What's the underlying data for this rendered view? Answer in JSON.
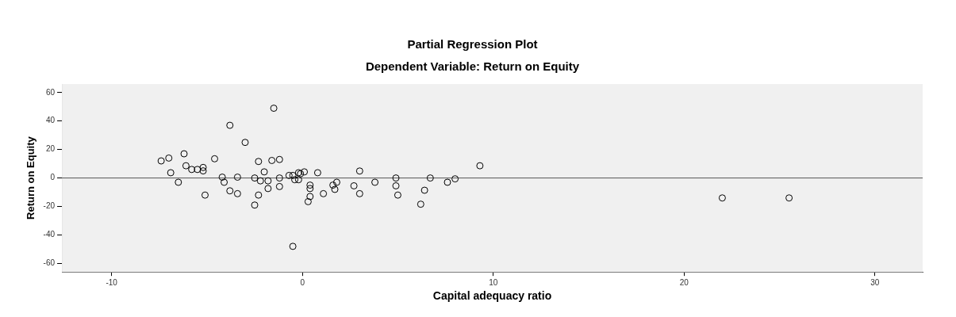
{
  "chart_data": {
    "type": "scatter",
    "title": "Partial Regression Plot",
    "subtitle": "Dependent Variable: Return on Equity",
    "xlabel": "Capital adequacy ratio",
    "ylabel": "Return on Equity",
    "x": [
      -1.5,
      -3.8,
      -3.0,
      -7.4,
      -7.0,
      -6.2,
      -4.6,
      -6.1,
      -5.8,
      -5.5,
      -5.2,
      -5.2,
      -6.9,
      -6.5,
      -5.1,
      -4.2,
      -4.1,
      -3.4,
      -3.8,
      -3.4,
      -2.3,
      -2.0,
      -1.6,
      -1.2,
      -2.5,
      -2.2,
      -1.8,
      -1.8,
      -1.2,
      -2.3,
      -2.5,
      -1.2,
      -0.7,
      -0.4,
      -0.1,
      -0.5,
      -0.5,
      -0.2,
      0.1,
      0.8,
      -0.2,
      0.4,
      0.4,
      0.4,
      0.3,
      1.1,
      1.6,
      1.8,
      1.7,
      2.7,
      3.0,
      3.0,
      3.8,
      4.9,
      4.9,
      5.0,
      6.4,
      6.2,
      6.7,
      7.6,
      8.0,
      9.3,
      22.0,
      25.5
    ],
    "series": [
      {
        "color": "#000000",
        "values": [
          49,
          37,
          25,
          12,
          14,
          17,
          13.5,
          8.6,
          6,
          6,
          7.4,
          5,
          3.7,
          -3,
          -12,
          0.6,
          -3,
          0.6,
          -9,
          -11,
          11.6,
          4.3,
          12.3,
          13,
          0,
          -2,
          -2,
          -7.4,
          -6,
          -12,
          -19,
          0,
          1.8,
          -1.2,
          3,
          -48,
          1.8,
          3.7,
          4.3,
          3.7,
          -1.2,
          -5,
          -7.4,
          -13,
          -16.6,
          -11,
          -5,
          -3,
          -8,
          -5.5,
          4.9,
          -11,
          -3,
          0,
          -5.5,
          -12,
          -8.6,
          -18.4,
          0,
          -3,
          -0.6,
          8.6,
          -14,
          -14
        ]
      }
    ],
    "xlim": [
      -12.6,
      32.5
    ],
    "xticks": [
      -10,
      0,
      10,
      20,
      30
    ],
    "ylim": [
      -66,
      66
    ],
    "yticks": [
      -60,
      -40,
      -20,
      0,
      20,
      40,
      60
    ],
    "ref_lines": [
      {
        "axis": "y",
        "value": 0,
        "color": "#555555"
      }
    ],
    "marker": "circle",
    "legend": false
  }
}
